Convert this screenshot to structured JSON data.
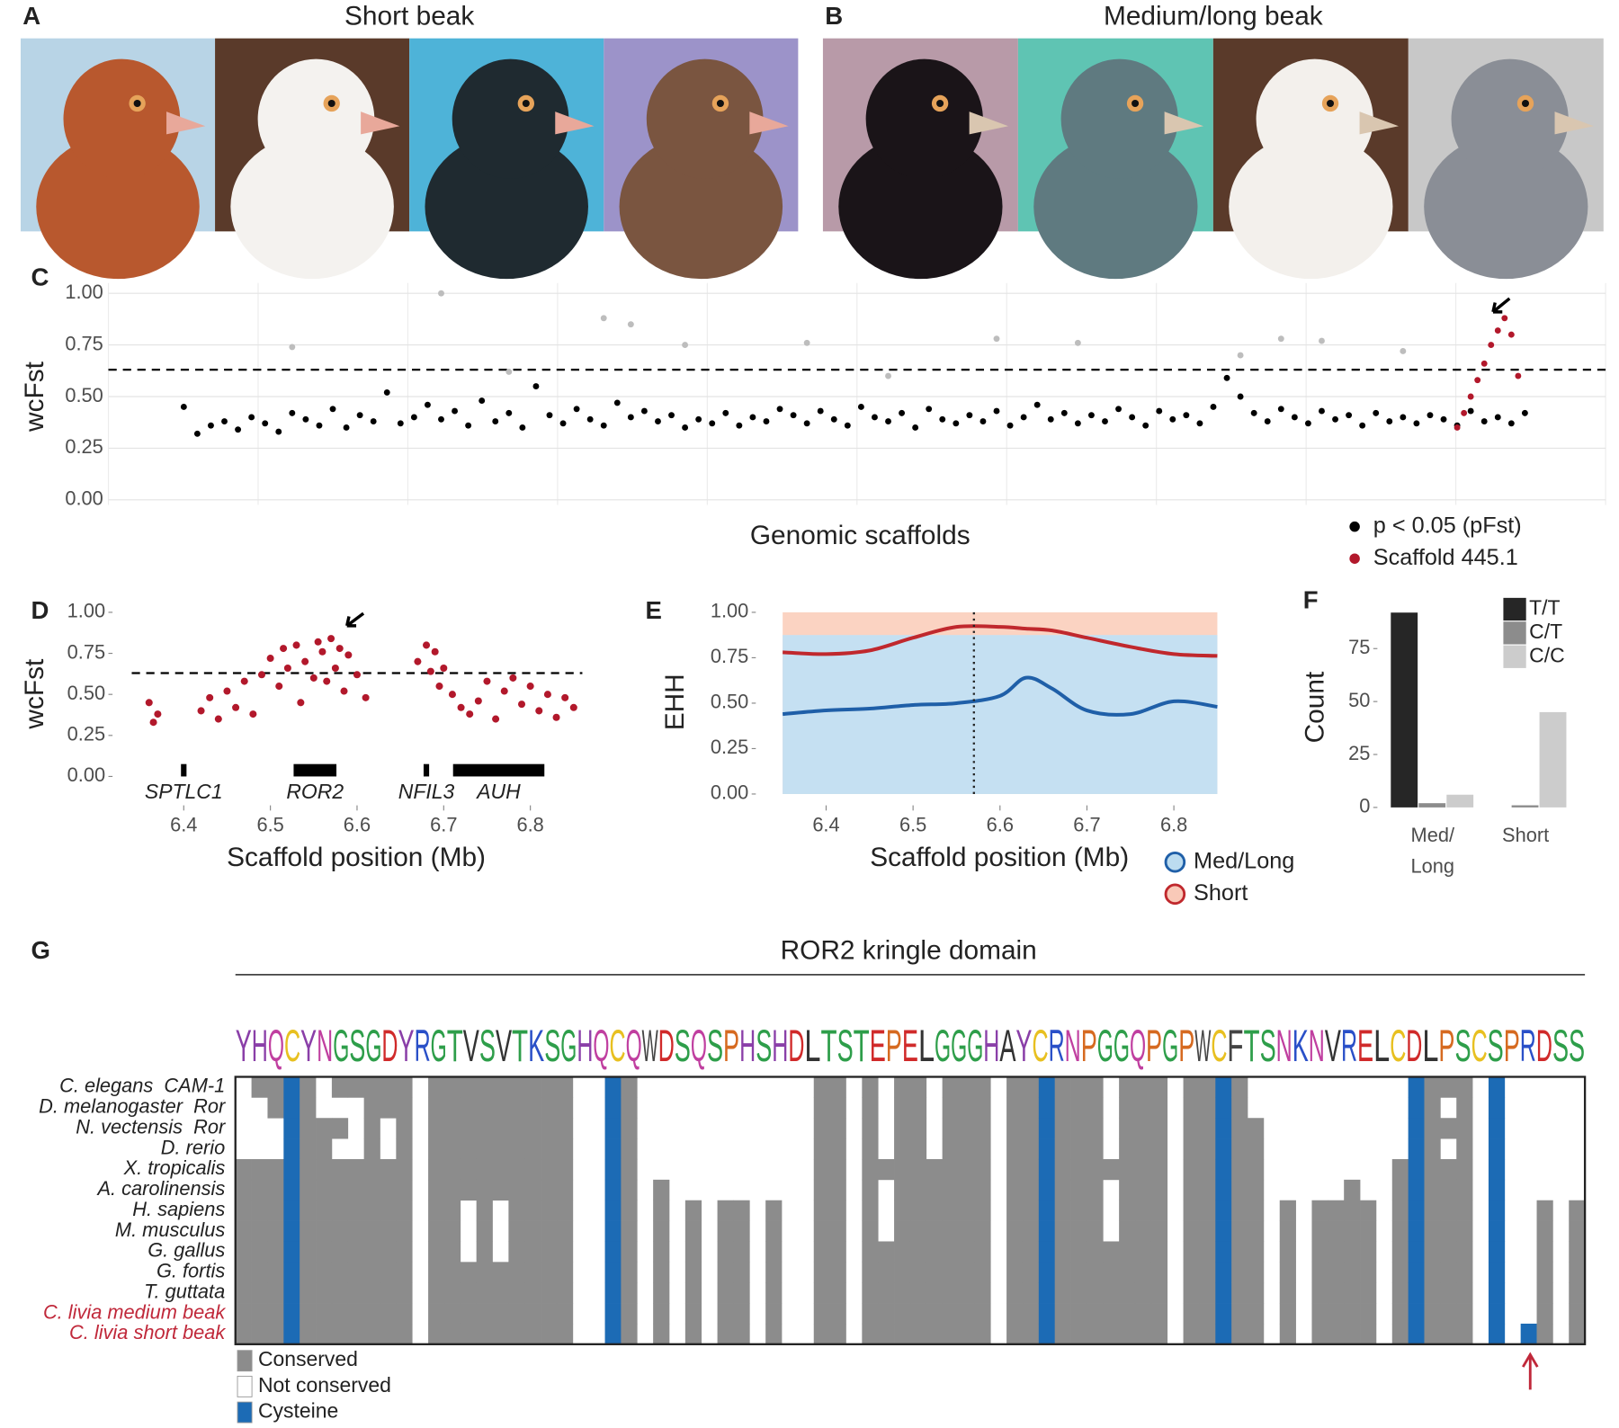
{
  "figure": {
    "photos": [
      {
        "panel": "A",
        "title": "Short beak"
      },
      {
        "panel": "B",
        "title": "Medium/long beak"
      }
    ]
  },
  "chart_data": [
    {
      "type": "scatter",
      "panel": "C",
      "ylabel": "wcFst",
      "xlabel": "Genomic scaffolds",
      "xlim": [
        0,
        100
      ],
      "ylim": [
        0,
        1
      ],
      "yticks": [
        {
          "value": 0,
          "label": "0.00"
        },
        {
          "value": 0.25,
          "label": "0.25"
        },
        {
          "value": 0.5,
          "label": "0.50"
        },
        {
          "value": 0.75,
          "label": "0.75"
        },
        {
          "value": 1,
          "label": "1.00"
        }
      ],
      "grid": true,
      "threshold": 0.63,
      "series": [
        {
          "color": "#bdbdbd",
          "x": [
            19,
            31,
            33,
            8,
            37,
            46,
            60,
            66,
            78,
            81,
            84,
            90,
            24,
            52
          ],
          "values": [
            1.0,
            0.88,
            0.85,
            0.74,
            0.75,
            0.76,
            0.78,
            0.76,
            0.7,
            0.78,
            0.77,
            0.72,
            0.62,
            0.6
          ]
        },
        {
          "name": "p < 0.05 (pFst)",
          "color": "#000000",
          "x": [
            0,
            1,
            2,
            3,
            4,
            5,
            6,
            7,
            8,
            9,
            10,
            11,
            12,
            13,
            14,
            15,
            16,
            17,
            18,
            19,
            20,
            21,
            22,
            23,
            24,
            25,
            26,
            27,
            28,
            29,
            30,
            31,
            32,
            33,
            34,
            35,
            36,
            37,
            38,
            39,
            40,
            41,
            42,
            43,
            44,
            45,
            46,
            47,
            48,
            49,
            50,
            51,
            52,
            53,
            54,
            55,
            56,
            57,
            58,
            59,
            60,
            61,
            62,
            63,
            64,
            65,
            66,
            67,
            68,
            69,
            70,
            71,
            72,
            73,
            74,
            75,
            76,
            77,
            78,
            79,
            80,
            81,
            82,
            83,
            84,
            85,
            86,
            87,
            88,
            89,
            90,
            91,
            92,
            93,
            94,
            95,
            96,
            97,
            98,
            99
          ],
          "values": [
            0.45,
            0.32,
            0.36,
            0.38,
            0.34,
            0.4,
            0.37,
            0.33,
            0.42,
            0.39,
            0.36,
            0.44,
            0.35,
            0.41,
            0.38,
            0.52,
            0.37,
            0.4,
            0.46,
            0.39,
            0.43,
            0.36,
            0.48,
            0.38,
            0.42,
            0.35,
            0.55,
            0.41,
            0.37,
            0.44,
            0.39,
            0.36,
            0.47,
            0.4,
            0.43,
            0.38,
            0.41,
            0.35,
            0.39,
            0.37,
            0.42,
            0.36,
            0.4,
            0.38,
            0.44,
            0.41,
            0.37,
            0.43,
            0.39,
            0.36,
            0.45,
            0.4,
            0.38,
            0.42,
            0.35,
            0.44,
            0.39,
            0.37,
            0.41,
            0.38,
            0.43,
            0.36,
            0.4,
            0.46,
            0.39,
            0.42,
            0.37,
            0.41,
            0.38,
            0.44,
            0.4,
            0.36,
            0.43,
            0.39,
            0.41,
            0.37,
            0.45,
            0.59,
            0.5,
            0.42,
            0.38,
            0.44,
            0.4,
            0.37,
            0.43,
            0.39,
            0.41,
            0.36,
            0.42,
            0.38,
            0.4,
            0.37,
            0.41,
            0.39,
            0.36,
            0.43,
            0.38,
            0.4,
            0.37,
            0.42
          ]
        },
        {
          "name": "Scaffold 445.1",
          "color": "#b2182b",
          "x": [
            94,
            94.5,
            95,
            95.5,
            96,
            96.5,
            97,
            97.5,
            98,
            98.5
          ],
          "values": [
            0.35,
            0.42,
            0.5,
            0.58,
            0.66,
            0.75,
            0.82,
            0.88,
            0.8,
            0.6
          ]
        }
      ]
    },
    {
      "type": "scatter",
      "panel": "D",
      "ylabel": "wcFst",
      "xlabel": "Scaffold position (Mb)",
      "xlim": [
        6.34,
        6.86
      ],
      "ylim": [
        0,
        1
      ],
      "xticks": [
        6.4,
        6.5,
        6.6,
        6.7,
        6.8
      ],
      "yticks": [
        {
          "value": 0,
          "label": "0.00"
        },
        {
          "value": 0.25,
          "label": "0.25"
        },
        {
          "value": 0.5,
          "label": "0.50"
        },
        {
          "value": 0.75,
          "label": "0.75"
        },
        {
          "value": 1,
          "label": "1.00"
        }
      ],
      "threshold": 0.63,
      "series": [
        {
          "color": "#b2182b",
          "x": [
            6.36,
            6.365,
            6.37,
            6.42,
            6.43,
            6.44,
            6.45,
            6.46,
            6.47,
            6.48,
            6.49,
            6.5,
            6.51,
            6.515,
            6.52,
            6.53,
            6.535,
            6.54,
            6.55,
            6.555,
            6.56,
            6.565,
            6.57,
            6.575,
            6.58,
            6.585,
            6.59,
            6.6,
            6.61,
            6.67,
            6.68,
            6.685,
            6.69,
            6.695,
            6.7,
            6.71,
            6.72,
            6.73,
            6.74,
            6.75,
            6.76,
            6.77,
            6.78,
            6.79,
            6.8,
            6.81,
            6.82,
            6.83,
            6.84,
            6.85
          ],
          "values": [
            0.45,
            0.33,
            0.38,
            0.4,
            0.48,
            0.35,
            0.52,
            0.42,
            0.58,
            0.38,
            0.62,
            0.72,
            0.55,
            0.78,
            0.66,
            0.8,
            0.45,
            0.7,
            0.6,
            0.82,
            0.76,
            0.58,
            0.84,
            0.66,
            0.78,
            0.52,
            0.74,
            0.62,
            0.48,
            0.7,
            0.8,
            0.64,
            0.76,
            0.55,
            0.66,
            0.5,
            0.42,
            0.38,
            0.46,
            0.58,
            0.35,
            0.52,
            0.6,
            0.44,
            0.55,
            0.4,
            0.5,
            0.36,
            0.48,
            0.42
          ]
        }
      ],
      "genes": [
        {
          "label": "SPTLC1",
          "start": 6.398,
          "end": 6.402
        },
        {
          "label": "ROR2",
          "start": 6.528,
          "end": 6.575
        },
        {
          "label": "NFIL3",
          "start": 6.678,
          "end": 6.682
        },
        {
          "label": "AUH",
          "start": 6.712,
          "end": 6.815
        }
      ]
    },
    {
      "type": "line",
      "panel": "E",
      "ylabel": "EHH",
      "xlabel": "Scaffold position (Mb)",
      "xlim": [
        6.35,
        6.85
      ],
      "ylim": [
        0,
        1
      ],
      "xticks": [
        6.4,
        6.5,
        6.6,
        6.7,
        6.8
      ],
      "yticks": [
        {
          "value": 0,
          "label": "0.00"
        },
        {
          "value": 0.25,
          "label": "0.25"
        },
        {
          "value": 0.5,
          "label": "0.50"
        },
        {
          "value": 0.75,
          "label": "0.75"
        },
        {
          "value": 1,
          "label": "1.00"
        }
      ],
      "marker_x": 6.57,
      "x": [
        6.35,
        6.4,
        6.45,
        6.5,
        6.55,
        6.6,
        6.63,
        6.66,
        6.7,
        6.75,
        6.8,
        6.85
      ],
      "series": [
        {
          "name": "Med/Long",
          "color": "#1f5fa8",
          "values": [
            0.44,
            0.46,
            0.47,
            0.49,
            0.5,
            0.54,
            0.64,
            0.58,
            0.46,
            0.44,
            0.51,
            0.48
          ]
        },
        {
          "name": "Short",
          "color": "#c0282d",
          "values": [
            0.78,
            0.77,
            0.79,
            0.86,
            0.92,
            0.92,
            0.91,
            0.9,
            0.86,
            0.81,
            0.77,
            0.76
          ]
        }
      ]
    },
    {
      "type": "bar",
      "panel": "F",
      "ylabel": "Count",
      "ylim": [
        0,
        97
      ],
      "yticks": [
        0,
        25,
        50,
        75
      ],
      "categories": [
        "Med/\nLong",
        "Short"
      ],
      "series": [
        {
          "name": "T/T",
          "color": "#262626",
          "values": [
            92,
            0
          ]
        },
        {
          "name": "C/T",
          "color": "#8c8c8c",
          "values": [
            2,
            1
          ]
        },
        {
          "name": "C/C",
          "color": "#cccccc",
          "values": [
            6,
            45
          ]
        }
      ]
    }
  ],
  "alignment": {
    "panel": "G",
    "title": "ROR2 kringle domain",
    "logo": "YHQCYNGSGDYRGTVSVTKSGHQCQWDSQSPHSHDLTSTEPELGGGHAYCRNPGGQPGPWCFTSNKNVRELCDLPSCSPRDSS",
    "species": [
      {
        "label": "C. elegans  CAM-1",
        "color": "#222222"
      },
      {
        "label": "D. melanogaster  Ror",
        "color": "#222222"
      },
      {
        "label": "N. vectensis  Ror",
        "color": "#222222"
      },
      {
        "label": "D. rerio",
        "color": "#222222"
      },
      {
        "label": "X. tropicalis",
        "color": "#222222"
      },
      {
        "label": "A. carolinensis",
        "color": "#222222"
      },
      {
        "label": "H. sapiens",
        "color": "#222222"
      },
      {
        "label": "M. musculus",
        "color": "#222222"
      },
      {
        "label": "G. gallus",
        "color": "#222222"
      },
      {
        "label": "G. fortis",
        "color": "#222222"
      },
      {
        "label": "T. guttata",
        "color": "#222222"
      },
      {
        "label": "C. livia medium beak",
        "color": "#c0283a"
      },
      {
        "label": "C. livia short beak",
        "color": "#c0283a"
      }
    ],
    "legend": [
      {
        "label": "Conserved",
        "color": "#8c8c8c"
      },
      {
        "label": "Not conserved",
        "color": "#ffffff"
      },
      {
        "label": "Cysteine",
        "color": "#1c6bb5"
      }
    ],
    "columns": [
      "....#########",
      "#...#########",
      "##..#########",
      "CCCCCCCCCCCCC",
      "#############",
      "..###########",
      "#.#.#########",
      "#...#########",
      "#############",
      "##..#########",
      "#############",
      ".............",
      "#############",
      "#############",
      "######...####",
      "#############",
      "######...####",
      "#############",
      "#############",
      "#############",
      "#############",
      ".............",
      ".............",
      "CCCCCCCCCCCCC",
      "#############",
      ".............",
      ".....########",
      ".............",
      "......#######",
      ".............",
      "......#######",
      "......#######",
      ".............",
      "......#######",
      ".............",
      ".............",
      "#############",
      "#############",
      ".............",
      "#############",
      "....#...#####",
      "#############",
      "#############",
      "....#########",
      "#############",
      "#############",
      "#############",
      ".............",
      "#############",
      "#############",
      "CCCCCCCCCCCCC",
      "#############",
      "#############",
      "#############",
      "....#...#####",
      "#############",
      "#############",
      "#############",
      ".............",
      "#############",
      "#############",
      "CCCCCCCCCCCCC",
      "#############",
      "..###########",
      ".............",
      "......#######",
      ".............",
      "......#######",
      "......#######",
      ".....########",
      "......#######",
      ".............",
      "....#########",
      "CCCCCCCCCCCCC",
      "#############",
      "#.#.#########",
      "#############",
      ".............",
      "CCCCCCCCCCCCC",
      ".............",
      "............C",
      "......#######",
      ".............",
      "......#######"
    ]
  }
}
